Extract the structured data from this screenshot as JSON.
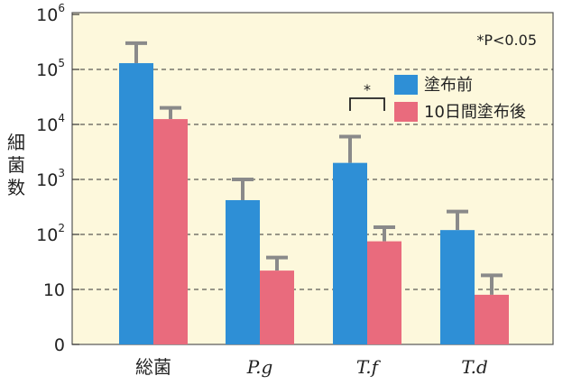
{
  "chart_data": {
    "type": "bar",
    "ylabel": "細菌数",
    "scale": "log",
    "ylim": [
      1,
      1000000
    ],
    "ticks": [
      {
        "base": "0",
        "exp": ""
      },
      {
        "base": "10",
        "exp": ""
      },
      {
        "base": "10",
        "exp": "2"
      },
      {
        "base": "10",
        "exp": "3"
      },
      {
        "base": "10",
        "exp": "4"
      },
      {
        "base": "10",
        "exp": "5"
      },
      {
        "base": "10",
        "exp": "6"
      }
    ],
    "categories": [
      "総菌",
      "P.g",
      "T.f",
      "T.d"
    ],
    "series": [
      {
        "name": "塗布前",
        "color": "#2e8fd6",
        "values": [
          130000,
          420,
          2000,
          120
        ],
        "errors": [
          300000,
          1000,
          6000,
          260
        ]
      },
      {
        "name": "10日間塗布後",
        "color": "#e96b7d",
        "values": [
          12500,
          22,
          75,
          8
        ],
        "errors": [
          20000,
          38,
          135,
          18
        ]
      }
    ],
    "annotation": "*P<0.05",
    "significance": {
      "category": "T.f",
      "marker": "*"
    },
    "grid": "dashed",
    "legend": "top-right",
    "background": "#fdf8dc",
    "error_color": "#8a8a8a"
  }
}
